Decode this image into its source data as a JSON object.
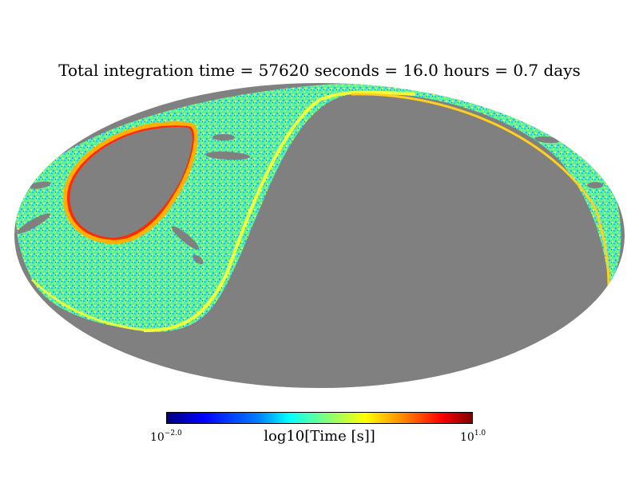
{
  "chart_data": {
    "type": "heatmap",
    "projection": "mollweide",
    "title": "Total integration time = 57620 seconds = 16.0 hours = 0.7 days",
    "colorbar": {
      "label": "log10[Time [s]]",
      "min_base": "10",
      "min_exp": "−2.0",
      "max_base": "10",
      "max_exp": "1.0",
      "min": -2.0,
      "max": 1.0,
      "colormap": "jet"
    },
    "background_color": "#808080"
  }
}
